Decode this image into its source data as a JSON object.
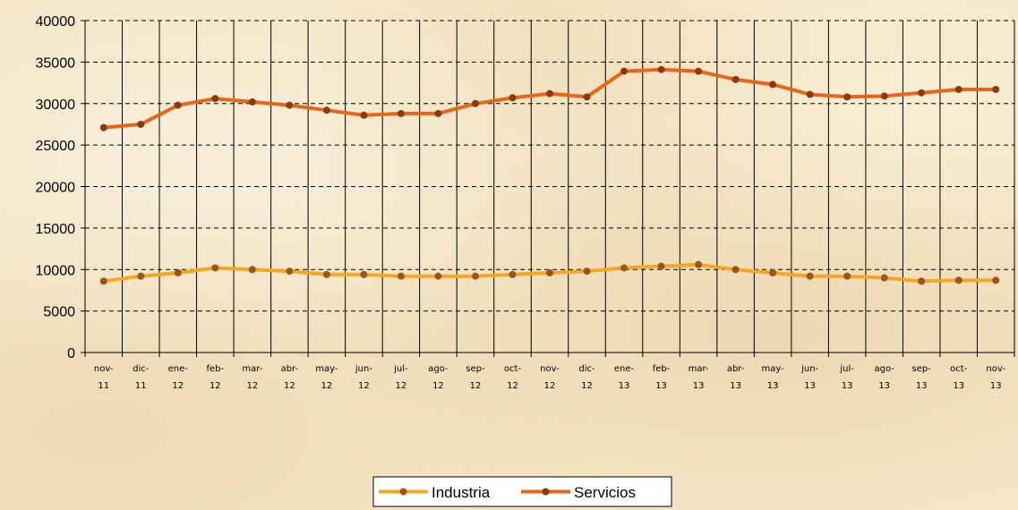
{
  "chart_data": {
    "type": "line",
    "title": "",
    "xlabel": "",
    "ylabel": "",
    "ylim": [
      0,
      40000
    ],
    "yticks": [
      0,
      5000,
      10000,
      15000,
      20000,
      25000,
      30000,
      35000,
      40000
    ],
    "grid": "vertical lines on every category, horizontal dashed lines on every y tick",
    "legend_position": "bottom-center",
    "categories": [
      [
        "nov-",
        "11"
      ],
      [
        "dic-",
        "11"
      ],
      [
        "ene-",
        "12"
      ],
      [
        "feb-",
        "12"
      ],
      [
        "mar-",
        "12"
      ],
      [
        "abr-",
        "12"
      ],
      [
        "may-",
        "12"
      ],
      [
        "jun-",
        "12"
      ],
      [
        "jul-",
        "12"
      ],
      [
        "ago-",
        "12"
      ],
      [
        "sep-",
        "12"
      ],
      [
        "oct-",
        "12"
      ],
      [
        "nov-",
        "12"
      ],
      [
        "dic-",
        "12"
      ],
      [
        "ene-",
        "13"
      ],
      [
        "feb-",
        "13"
      ],
      [
        "mar-",
        "13"
      ],
      [
        "abr-",
        "13"
      ],
      [
        "may-",
        "13"
      ],
      [
        "jun-",
        "13"
      ],
      [
        "jul-",
        "13"
      ],
      [
        "ago-",
        "13"
      ],
      [
        "sep-",
        "13"
      ],
      [
        "oct-",
        "13"
      ],
      [
        "nov-",
        "13"
      ]
    ],
    "series": [
      {
        "name": "Industria",
        "color": "#f5a623",
        "marker_color": "#a0521e",
        "values": [
          8600,
          9200,
          9600,
          10200,
          10000,
          9800,
          9400,
          9400,
          9200,
          9200,
          9200,
          9400,
          9600,
          9800,
          10200,
          10400,
          10600,
          10000,
          9600,
          9200,
          9200,
          9000,
          8600,
          8700,
          8700
        ]
      },
      {
        "name": "Servicios",
        "color": "#e8661a",
        "marker_color": "#8b3a10",
        "values": [
          27100,
          27500,
          29800,
          30600,
          30200,
          29800,
          29200,
          28600,
          28800,
          28800,
          30000,
          30700,
          31200,
          30800,
          33900,
          34100,
          33900,
          32900,
          32300,
          31100,
          30800,
          30900,
          31300,
          31700,
          31700
        ]
      }
    ]
  }
}
